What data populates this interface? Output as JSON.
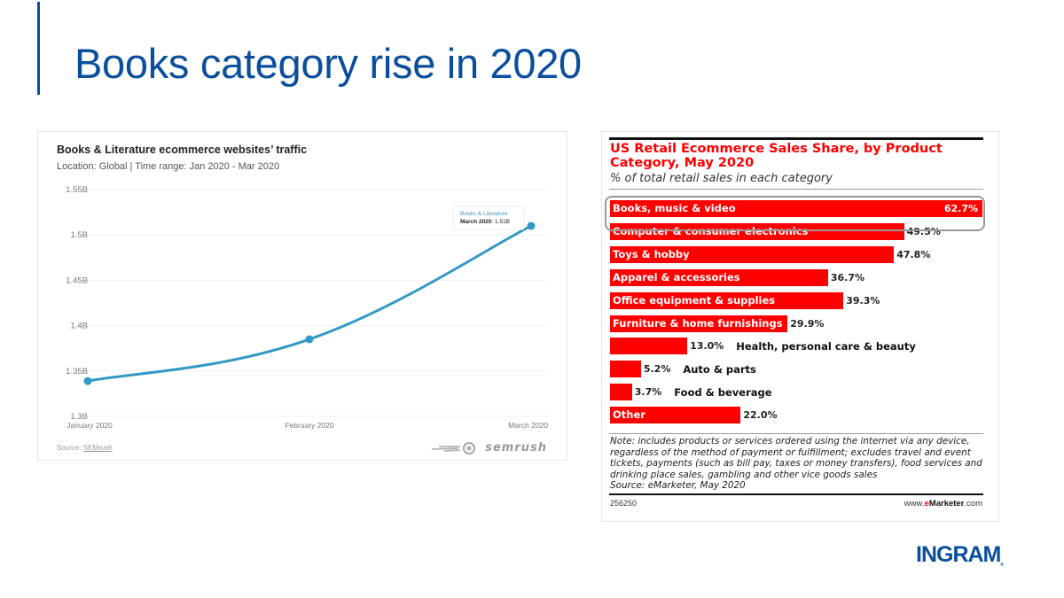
{
  "slide": {
    "title": "Books category rise in 2020",
    "accent_color": "#0a4f9c",
    "logo_text": "INGRAM",
    "logo_mark": "®"
  },
  "left_panel": {
    "title": "Books & Literature ecommerce websites’ traffic",
    "subtitle": "Location: Global | Time range: Jan 2020 - Mar 2020",
    "source_prefix": "Source: ",
    "source_link": "SEMrush",
    "brand": "semrush",
    "tooltip": {
      "series": "Books & Literature",
      "label": "March 2020",
      "value": ": 1.51B"
    }
  },
  "right_panel": {
    "title": "US Retail Ecommerce Sales Share, by Product Category, May 2020",
    "subtitle": "% of total retail sales in each category",
    "note": "Note: includes products or services ordered using the internet via any device, regardless of the method of payment or fulfillment; excludes travel and event tickets, payments (such as bill pay, taxes or money transfers), food services and drinking place sales, gambling and other vice goods sales",
    "source": "Source: eMarketer, May 2020",
    "chart_id": "256250",
    "site_prefix": "www.",
    "site_e": "e",
    "site_brand": "Marketer",
    "site_suffix": ".com",
    "highlighted_category": "Books, music & video"
  },
  "chart_data": [
    {
      "type": "line",
      "title": "Books & Literature ecommerce websites’ traffic",
      "subtitle": "Location: Global | Time range: Jan 2020 - Mar 2020",
      "x": [
        "January 2020",
        "February 2020",
        "March 2020"
      ],
      "series": [
        {
          "name": "Books & Literature",
          "values": [
            1.339,
            1.385,
            1.51
          ],
          "color": "#3399c5"
        }
      ],
      "xlabel": "",
      "ylabel": "",
      "yunit": "B",
      "ylim": [
        1.3,
        1.55
      ],
      "yticks": [
        1.3,
        1.35,
        1.4,
        1.45,
        1.5,
        1.55
      ],
      "ytick_labels": [
        "1.3B",
        "1.35B",
        "1.4B",
        "1.45B",
        "1.5B",
        "1.55B"
      ],
      "grid": true,
      "legend": "none",
      "annotation": "Books & Literature — March 2020: 1.51B"
    },
    {
      "type": "bar",
      "orientation": "horizontal",
      "title": "US Retail Ecommerce Sales Share, by Product Category, May 2020",
      "subtitle": "% of total retail sales in each category",
      "categories": [
        "Books, music & video",
        "Computer & consumer electronics",
        "Toys & hobby",
        "Apparel & accessories",
        "Office equipment & supplies",
        "Furniture & home furnishings",
        "Health, personal care & beauty",
        "Auto & parts",
        "Food & beverage",
        "Other"
      ],
      "values": [
        62.7,
        49.5,
        47.8,
        36.7,
        39.3,
        29.9,
        13.0,
        5.2,
        3.7,
        22.0
      ],
      "value_labels": [
        "62.7%",
        "49.5%",
        "47.8%",
        "36.7%",
        "39.3%",
        "29.9%",
        "13.0%",
        "5.2%",
        "3.7%",
        "22.0%"
      ],
      "label_inside": [
        true,
        true,
        true,
        true,
        true,
        true,
        false,
        false,
        false,
        true
      ],
      "color": "#ff0000",
      "xlim": [
        0,
        62.7
      ],
      "grid": false,
      "legend": "none"
    }
  ]
}
